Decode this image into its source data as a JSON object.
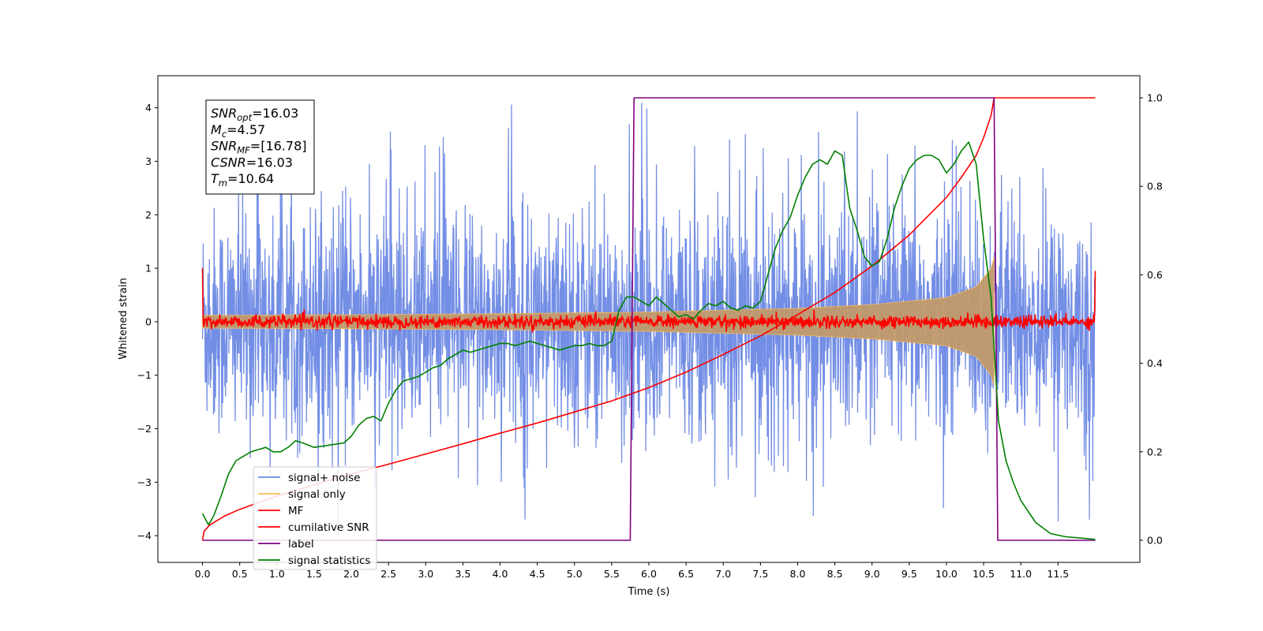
{
  "chart_data": {
    "type": "line",
    "title": "",
    "xlabel": "Time (s)",
    "ylabel": "Whitened strain",
    "y2label": "",
    "xlim": [
      -0.6,
      12.6
    ],
    "ylim": [
      -4.5,
      4.6
    ],
    "y2lim": [
      -0.05,
      1.05
    ],
    "grid": false,
    "legend_position": "lower-left",
    "x_ticks": [
      0.0,
      0.5,
      1.0,
      1.5,
      2.0,
      2.5,
      3.0,
      3.5,
      4.0,
      4.5,
      5.0,
      5.5,
      6.0,
      6.5,
      7.0,
      7.5,
      8.0,
      8.5,
      9.0,
      9.5,
      10.0,
      10.5,
      11.0,
      11.5
    ],
    "x_tick_labels": [
      "0.0",
      "0.5",
      "1.0",
      "1.5",
      "2.0",
      "2.5",
      "3.0",
      "3.5",
      "4.0",
      "4.5",
      "5.0",
      "5.5",
      "6.0",
      "6.5",
      "7.0",
      "7.5",
      "8.0",
      "8.5",
      "9.0",
      "9.5",
      "10.0",
      "10.5",
      "11.0",
      "11.5"
    ],
    "y_ticks": [
      -4,
      -3,
      -2,
      -1,
      0,
      1,
      2,
      3,
      4
    ],
    "y_tick_labels": [
      "−4",
      "−3",
      "−2",
      "−1",
      "0",
      "1",
      "2",
      "3",
      "4"
    ],
    "y2_ticks": [
      0.0,
      0.2,
      0.4,
      0.6,
      0.8,
      1.0
    ],
    "y2_tick_labels": [
      "0.0",
      "0.2",
      "0.4",
      "0.6",
      "0.8",
      "1.0"
    ],
    "annotation_lines": [
      {
        "base": "SNR",
        "sub": "opt",
        "rest": "=16.03"
      },
      {
        "base": "M",
        "sub": "c",
        "rest": "=4.57"
      },
      {
        "base": "SNR",
        "sub": "MF",
        "rest": "=[16.78]"
      },
      {
        "base": "CSNR",
        "sub": "",
        "rest": "=16.03"
      },
      {
        "base": "T",
        "sub": "m",
        "rest": "=10.64"
      }
    ],
    "series": [
      {
        "name": "signal+ noise",
        "color": "#6b88e4",
        "axis": "left",
        "style": "noise",
        "x_range": [
          0.0,
          12.0
        ],
        "envelope_upper": 2.2,
        "envelope_lower": -2.1,
        "peak_max": 4.2,
        "peak_min": -4.0
      },
      {
        "name": "signal only",
        "color": "#f5b95c",
        "axis": "left",
        "style": "chirp",
        "x_range": [
          0.0,
          10.64
        ],
        "fill_color": "#c19a6b",
        "amplitude": {
          "x": [
            0.0,
            2.0,
            4.0,
            6.0,
            8.0,
            9.0,
            10.0,
            10.4,
            10.6,
            10.64
          ],
          "y": [
            0.12,
            0.13,
            0.15,
            0.18,
            0.25,
            0.32,
            0.45,
            0.65,
            1.0,
            1.2
          ]
        }
      },
      {
        "name": "MF",
        "color": "#ff0000",
        "axis": "left",
        "style": "mf",
        "x_range": [
          0.0,
          12.0
        ],
        "start_value": 1.0,
        "end_value": 0.95,
        "mean": 0.0,
        "jitter": 0.06
      },
      {
        "name": "cumilative SNR",
        "color": "#ff0000",
        "axis": "right",
        "x": [
          0.0,
          0.02,
          0.1,
          0.3,
          0.5,
          1.0,
          1.5,
          2.0,
          2.5,
          3.0,
          3.5,
          4.0,
          4.5,
          5.0,
          5.5,
          6.0,
          6.5,
          7.0,
          7.5,
          8.0,
          8.5,
          9.0,
          9.5,
          10.0,
          10.2,
          10.4,
          10.5,
          10.6,
          10.64,
          10.65,
          12.0
        ],
        "values": [
          0.0,
          0.02,
          0.035,
          0.055,
          0.07,
          0.1,
          0.125,
          0.15,
          0.172,
          0.195,
          0.218,
          0.242,
          0.265,
          0.29,
          0.315,
          0.345,
          0.38,
          0.42,
          0.462,
          0.51,
          0.56,
          0.62,
          0.69,
          0.775,
          0.82,
          0.87,
          0.91,
          0.96,
          1.0,
          1.0,
          1.0
        ]
      },
      {
        "name": "label",
        "color": "#800080",
        "axis": "right",
        "x": [
          0.0,
          5.75,
          5.8,
          10.64,
          10.69,
          12.0
        ],
        "values": [
          0.0,
          0.0,
          1.0,
          1.0,
          0.0,
          0.0
        ]
      },
      {
        "name": "signal statistics",
        "color": "#008000",
        "axis": "right",
        "x": [
          0.0,
          0.08,
          0.15,
          0.25,
          0.35,
          0.45,
          0.55,
          0.65,
          0.75,
          0.85,
          0.95,
          1.05,
          1.15,
          1.25,
          1.35,
          1.5,
          1.7,
          1.9,
          2.0,
          2.1,
          2.2,
          2.3,
          2.4,
          2.5,
          2.6,
          2.7,
          2.8,
          2.9,
          3.0,
          3.1,
          3.2,
          3.3,
          3.4,
          3.5,
          3.6,
          3.7,
          3.8,
          3.9,
          4.0,
          4.1,
          4.2,
          4.3,
          4.4,
          4.5,
          4.6,
          4.7,
          4.8,
          4.9,
          5.0,
          5.1,
          5.2,
          5.3,
          5.4,
          5.5,
          5.6,
          5.7,
          5.8,
          5.9,
          6.0,
          6.1,
          6.2,
          6.3,
          6.4,
          6.5,
          6.6,
          6.7,
          6.8,
          6.9,
          7.0,
          7.1,
          7.2,
          7.3,
          7.4,
          7.5,
          7.6,
          7.7,
          7.8,
          7.9,
          8.0,
          8.1,
          8.2,
          8.3,
          8.4,
          8.5,
          8.6,
          8.7,
          8.8,
          8.9,
          9.0,
          9.1,
          9.2,
          9.3,
          9.4,
          9.5,
          9.6,
          9.7,
          9.8,
          9.9,
          10.0,
          10.1,
          10.2,
          10.3,
          10.4,
          10.5,
          10.6,
          10.7,
          10.8,
          10.9,
          11.0,
          11.2,
          11.4,
          11.6,
          11.8,
          12.0
        ],
        "values": [
          0.06,
          0.035,
          0.055,
          0.1,
          0.15,
          0.18,
          0.19,
          0.2,
          0.205,
          0.21,
          0.2,
          0.2,
          0.21,
          0.225,
          0.22,
          0.21,
          0.215,
          0.22,
          0.235,
          0.26,
          0.275,
          0.28,
          0.27,
          0.31,
          0.34,
          0.36,
          0.365,
          0.37,
          0.38,
          0.39,
          0.395,
          0.41,
          0.42,
          0.43,
          0.425,
          0.43,
          0.435,
          0.44,
          0.445,
          0.445,
          0.44,
          0.445,
          0.45,
          0.445,
          0.44,
          0.435,
          0.43,
          0.435,
          0.44,
          0.44,
          0.445,
          0.44,
          0.44,
          0.45,
          0.52,
          0.55,
          0.55,
          0.54,
          0.53,
          0.55,
          0.535,
          0.52,
          0.505,
          0.51,
          0.5,
          0.52,
          0.535,
          0.53,
          0.54,
          0.525,
          0.52,
          0.53,
          0.525,
          0.54,
          0.6,
          0.66,
          0.7,
          0.73,
          0.78,
          0.82,
          0.85,
          0.86,
          0.85,
          0.88,
          0.87,
          0.75,
          0.7,
          0.64,
          0.62,
          0.63,
          0.68,
          0.75,
          0.8,
          0.84,
          0.86,
          0.87,
          0.87,
          0.86,
          0.83,
          0.85,
          0.88,
          0.9,
          0.85,
          0.68,
          0.55,
          0.27,
          0.18,
          0.13,
          0.09,
          0.04,
          0.015,
          0.008,
          0.005,
          0.002
        ]
      }
    ]
  }
}
